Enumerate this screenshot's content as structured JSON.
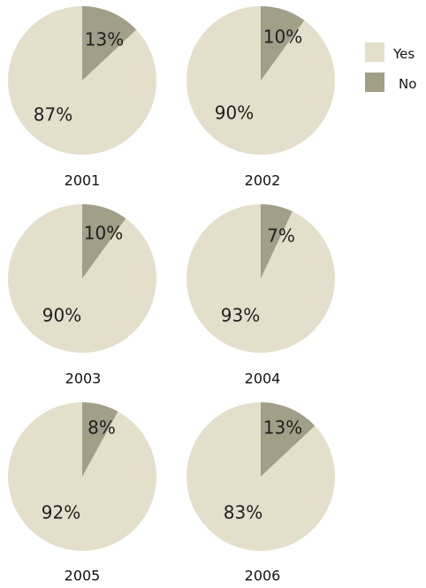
{
  "chart_data": {
    "type": "pie",
    "categories": [
      "Yes",
      "No"
    ],
    "colors": {
      "Yes": "#e3dfca",
      "No": "#a19f88"
    },
    "legend": {
      "placement": "top-right"
    },
    "pies": [
      {
        "year": "2001",
        "values": {
          "Yes": 87,
          "No": 13
        },
        "labels": {
          "Yes": "87%",
          "No": "13%"
        }
      },
      {
        "year": "2002",
        "values": {
          "Yes": 90,
          "No": 10
        },
        "labels": {
          "Yes": "90%",
          "No": "10%"
        }
      },
      {
        "year": "2003",
        "values": {
          "Yes": 90,
          "No": 10
        },
        "labels": {
          "Yes": "90%",
          "No": "10%"
        }
      },
      {
        "year": "2004",
        "values": {
          "Yes": 93,
          "No": 7
        },
        "labels": {
          "Yes": "93%",
          "No": "7%"
        }
      },
      {
        "year": "2005",
        "values": {
          "Yes": 92,
          "No": 8
        },
        "labels": {
          "Yes": "92%",
          "No": "8%"
        }
      },
      {
        "year": "2006",
        "values": {
          "Yes": 83,
          "No": 13
        },
        "labels": {
          "Yes": "83%",
          "No": "13%"
        }
      }
    ]
  }
}
